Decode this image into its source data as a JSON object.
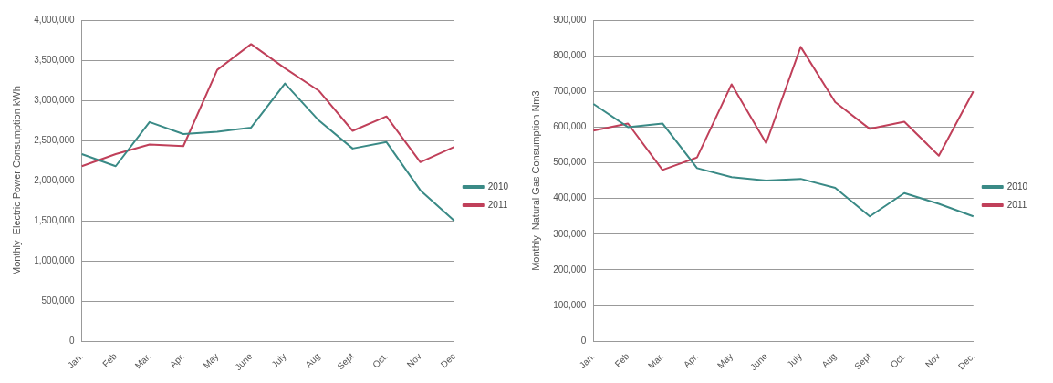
{
  "chart_data": [
    {
      "type": "line",
      "ylabel": "Monthly  Electric Power Consumption kWh",
      "categories": [
        "Jan.",
        "Feb",
        "Mar.",
        "Apr.",
        "May",
        "June",
        "July",
        "Aug",
        "Sept",
        "Oct.",
        "Nov",
        "Dec"
      ],
      "series": [
        {
          "name": "2010",
          "color": "#3a8a86",
          "values": [
            2330000,
            2180000,
            2730000,
            2580000,
            2610000,
            2660000,
            3210000,
            2750000,
            2400000,
            2480000,
            1880000,
            1500000
          ]
        },
        {
          "name": "2011",
          "color": "#c0405a",
          "values": [
            2180000,
            2330000,
            2450000,
            2430000,
            3380000,
            3700000,
            3400000,
            3120000,
            2620000,
            2800000,
            2230000,
            2420000
          ]
        }
      ],
      "ylim": [
        0,
        4000000
      ],
      "yticks": [
        0,
        {
          "value": 500000,
          "label": "500,000"
        },
        {
          "value": 1000000,
          "label": "1,000,000"
        },
        {
          "value": 1500000,
          "label": "1,500,000"
        },
        {
          "value": 2000000,
          "label": "2,000,000"
        },
        {
          "value": 2500000,
          "label": "2,500,000"
        },
        {
          "value": 3000000,
          "label": "3,000,000"
        },
        {
          "value": 3500000,
          "label": "3,500,000"
        },
        {
          "value": 4000000,
          "label": "4,000,000"
        }
      ],
      "grid": "y",
      "legend": "right",
      "marker": "none"
    },
    {
      "type": "line",
      "ylabel": "Monthly  Natural Gas Consumption Nm3",
      "categories": [
        "Jan.",
        "Feb",
        "Mar.",
        "Apr.",
        "May",
        "June",
        "July",
        "Aug",
        "Sept",
        "Oct.",
        "Nov",
        "Dec."
      ],
      "series": [
        {
          "name": "2010",
          "color": "#3a8a86",
          "values": [
            665000,
            600000,
            610000,
            485000,
            460000,
            450000,
            455000,
            430000,
            350000,
            415000,
            385000,
            350000
          ]
        },
        {
          "name": "2011",
          "color": "#c0405a",
          "values": [
            590000,
            610000,
            480000,
            515000,
            720000,
            555000,
            825000,
            670000,
            595000,
            615000,
            520000,
            700000
          ]
        }
      ],
      "ylim": [
        0,
        900000
      ],
      "yticks": [
        0,
        {
          "value": 100000,
          "label": "100,000"
        },
        {
          "value": 200000,
          "label": "200,000"
        },
        {
          "value": 300000,
          "label": "300,000"
        },
        {
          "value": 400000,
          "label": "400,000"
        },
        {
          "value": 500000,
          "label": "500,000"
        },
        {
          "value": 600000,
          "label": "600,000"
        },
        {
          "value": 700000,
          "label": "700,000"
        },
        {
          "value": 800000,
          "label": "800,000"
        },
        {
          "value": 900000,
          "label": "900,000"
        }
      ],
      "grid": "y",
      "legend": "right",
      "marker": "none"
    }
  ]
}
